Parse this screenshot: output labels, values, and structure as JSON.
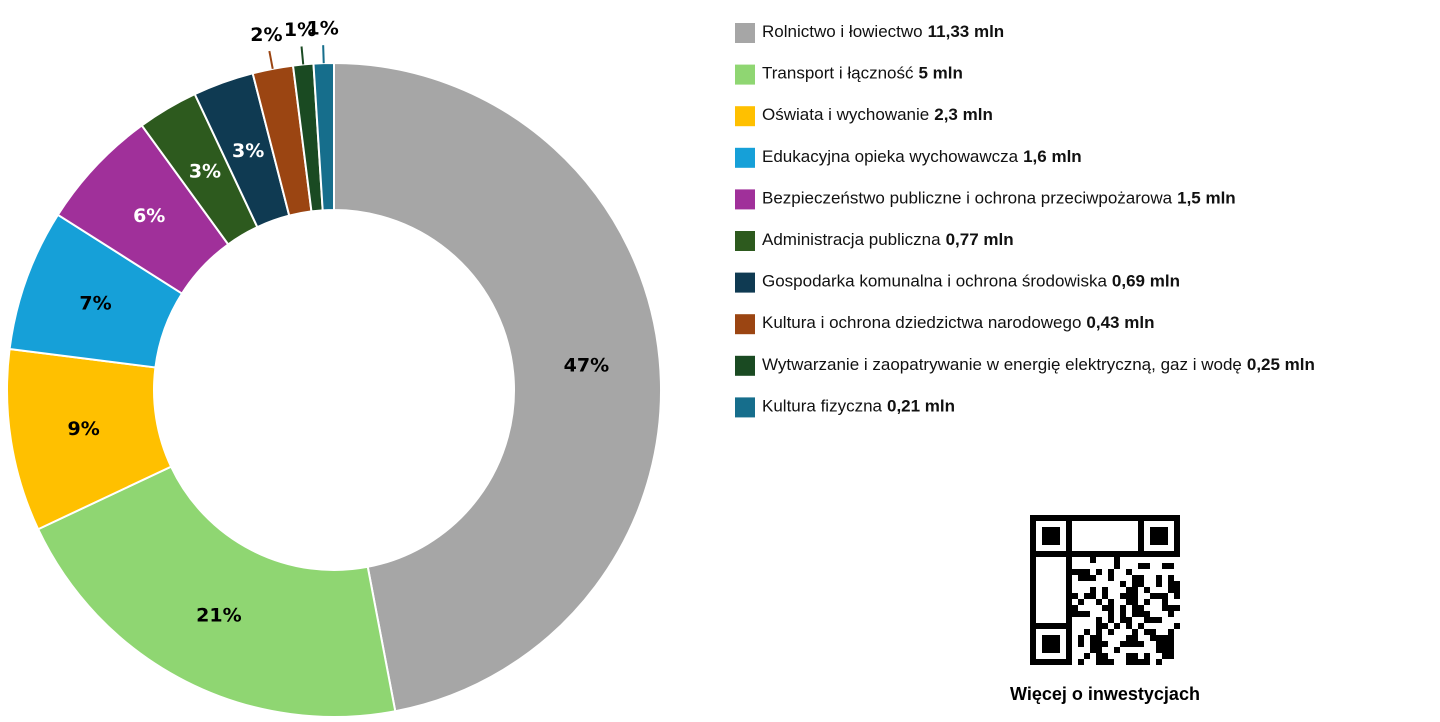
{
  "chart_data": {
    "type": "donut",
    "categories": [
      "Rolnictwo i łowiectwo",
      "Transport i łączność",
      "Oświata i wychowanie",
      "Edukacyjna opieka wychowawcza",
      "Bezpieczeństwo publiczne i ochrona przeciwpożarowa",
      "Administracja publiczna",
      "Gospodarka komunalna i ochrona środowiska",
      "Kultura i ochrona dziedzictwa narodowego",
      "Wytwarzanie i zaopatrywanie w energię elektryczną, gaz i wodę",
      "Kultura fizyczna"
    ],
    "values": [
      47,
      21,
      9,
      7,
      6,
      3,
      3,
      2,
      1,
      1
    ],
    "value_labels": [
      "47%",
      "21%",
      "9%",
      "7%",
      "6%",
      "3%",
      "3%",
      "2%",
      "1%",
      "1%"
    ],
    "legend_amounts": [
      "11,33 mln",
      "5 mln",
      "2,3 mln",
      "1,6 mln",
      "1,5 mln",
      "0,77 mln",
      "0,69 mln",
      "0,43 mln",
      "0,25 mln",
      "0,21 mln"
    ],
    "colors": [
      "#a6a6a6",
      "#8fd672",
      "#ffc000",
      "#16a0d8",
      "#a0309a",
      "#2d5a1e",
      "#0f3a52",
      "#9b4512",
      "#1a4a22",
      "#166e8c"
    ],
    "label_colors": [
      "#000000",
      "#000000",
      "#000000",
      "#000000",
      "#ffffff",
      "#ffffff",
      "#ffffff",
      "#000000",
      "#000000",
      "#000000"
    ],
    "caption": "Więcej o  inwestycjach"
  }
}
